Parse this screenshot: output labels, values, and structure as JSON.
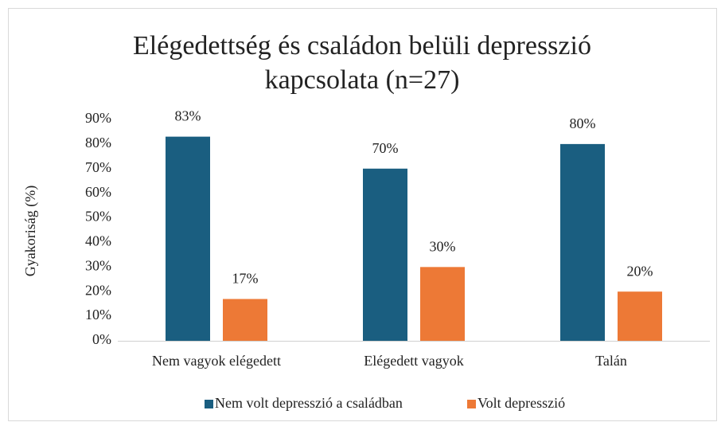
{
  "chart_data": {
    "type": "bar",
    "title": "Elégedettség és családon belüli depresszió kapcsolata (n=27)",
    "y_label": "Gyakoriság (%)",
    "categories": [
      "Nem vagyok elégedett",
      "Elégedett vagyok",
      "Talán"
    ],
    "series": [
      {
        "name": "Nem volt depresszió a családban",
        "color": "#1a5e80",
        "values": [
          83,
          70,
          80
        ],
        "value_labels": [
          "83%",
          "70%",
          "80%"
        ]
      },
      {
        "name": "Volt depresszió",
        "color": "#ed7936",
        "values": [
          17,
          30,
          20
        ],
        "value_labels": [
          "17%",
          "30%",
          "20%"
        ]
      }
    ],
    "ylim": [
      0,
      90
    ],
    "yticks": [
      {
        "value": 0,
        "label": "0%"
      },
      {
        "value": 10,
        "label": "10%"
      },
      {
        "value": 20,
        "label": "20%"
      },
      {
        "value": 30,
        "label": "30%"
      },
      {
        "value": 40,
        "label": "40%"
      },
      {
        "value": 50,
        "label": "50%"
      },
      {
        "value": 60,
        "label": "60%"
      },
      {
        "value": 70,
        "label": "70%"
      },
      {
        "value": 80,
        "label": "80%"
      },
      {
        "value": 90,
        "label": "90%"
      }
    ],
    "grid": false,
    "legend": "bottom"
  }
}
